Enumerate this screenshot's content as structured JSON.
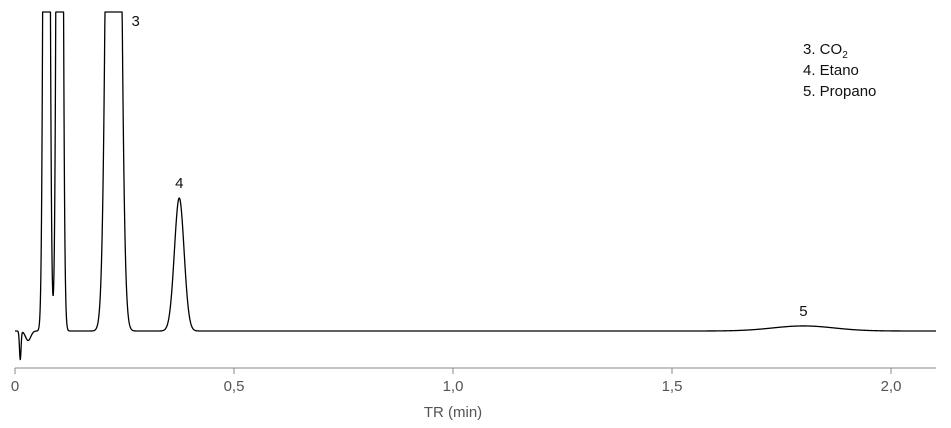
{
  "chart_data": {
    "type": "line",
    "title": "",
    "xlabel": "TR (min)",
    "ylabel": "",
    "xlim": [
      0,
      2.1
    ],
    "ylim": [
      -0.1,
      1.0
    ],
    "x_ticks": [
      0,
      0.5,
      1.0,
      1.5,
      2.0
    ],
    "x_tick_labels": [
      "0",
      "0,5",
      "1,0",
      "1,5",
      "2,0"
    ],
    "grid": false,
    "baseline": 0,
    "peaks": [
      {
        "label": "",
        "retention_time": 0.072,
        "relative_height": 1.0,
        "width": 0.005,
        "clipped": true
      },
      {
        "label": "",
        "retention_time": 0.102,
        "relative_height": 1.0,
        "width": 0.005,
        "clipped": true
      },
      {
        "label": "3",
        "retention_time": 0.225,
        "relative_height": 1.0,
        "width": 0.011,
        "clipped": true
      },
      {
        "label": "4",
        "retention_time": 0.375,
        "relative_height": 0.42,
        "width": 0.011,
        "clipped": false
      },
      {
        "label": "5",
        "retention_time": 1.8,
        "relative_height": 0.016,
        "width": 0.07,
        "clipped": false
      }
    ],
    "legend": {
      "position": "top-right",
      "entries": [
        {
          "prefix": "3. CO",
          "subscript": "2"
        },
        {
          "prefix": "4. Etano",
          "subscript": ""
        },
        {
          "prefix": "5. Propano",
          "subscript": ""
        }
      ]
    },
    "colors": {
      "trace": "#000000",
      "axis": "#888888",
      "text": "#555555"
    }
  }
}
